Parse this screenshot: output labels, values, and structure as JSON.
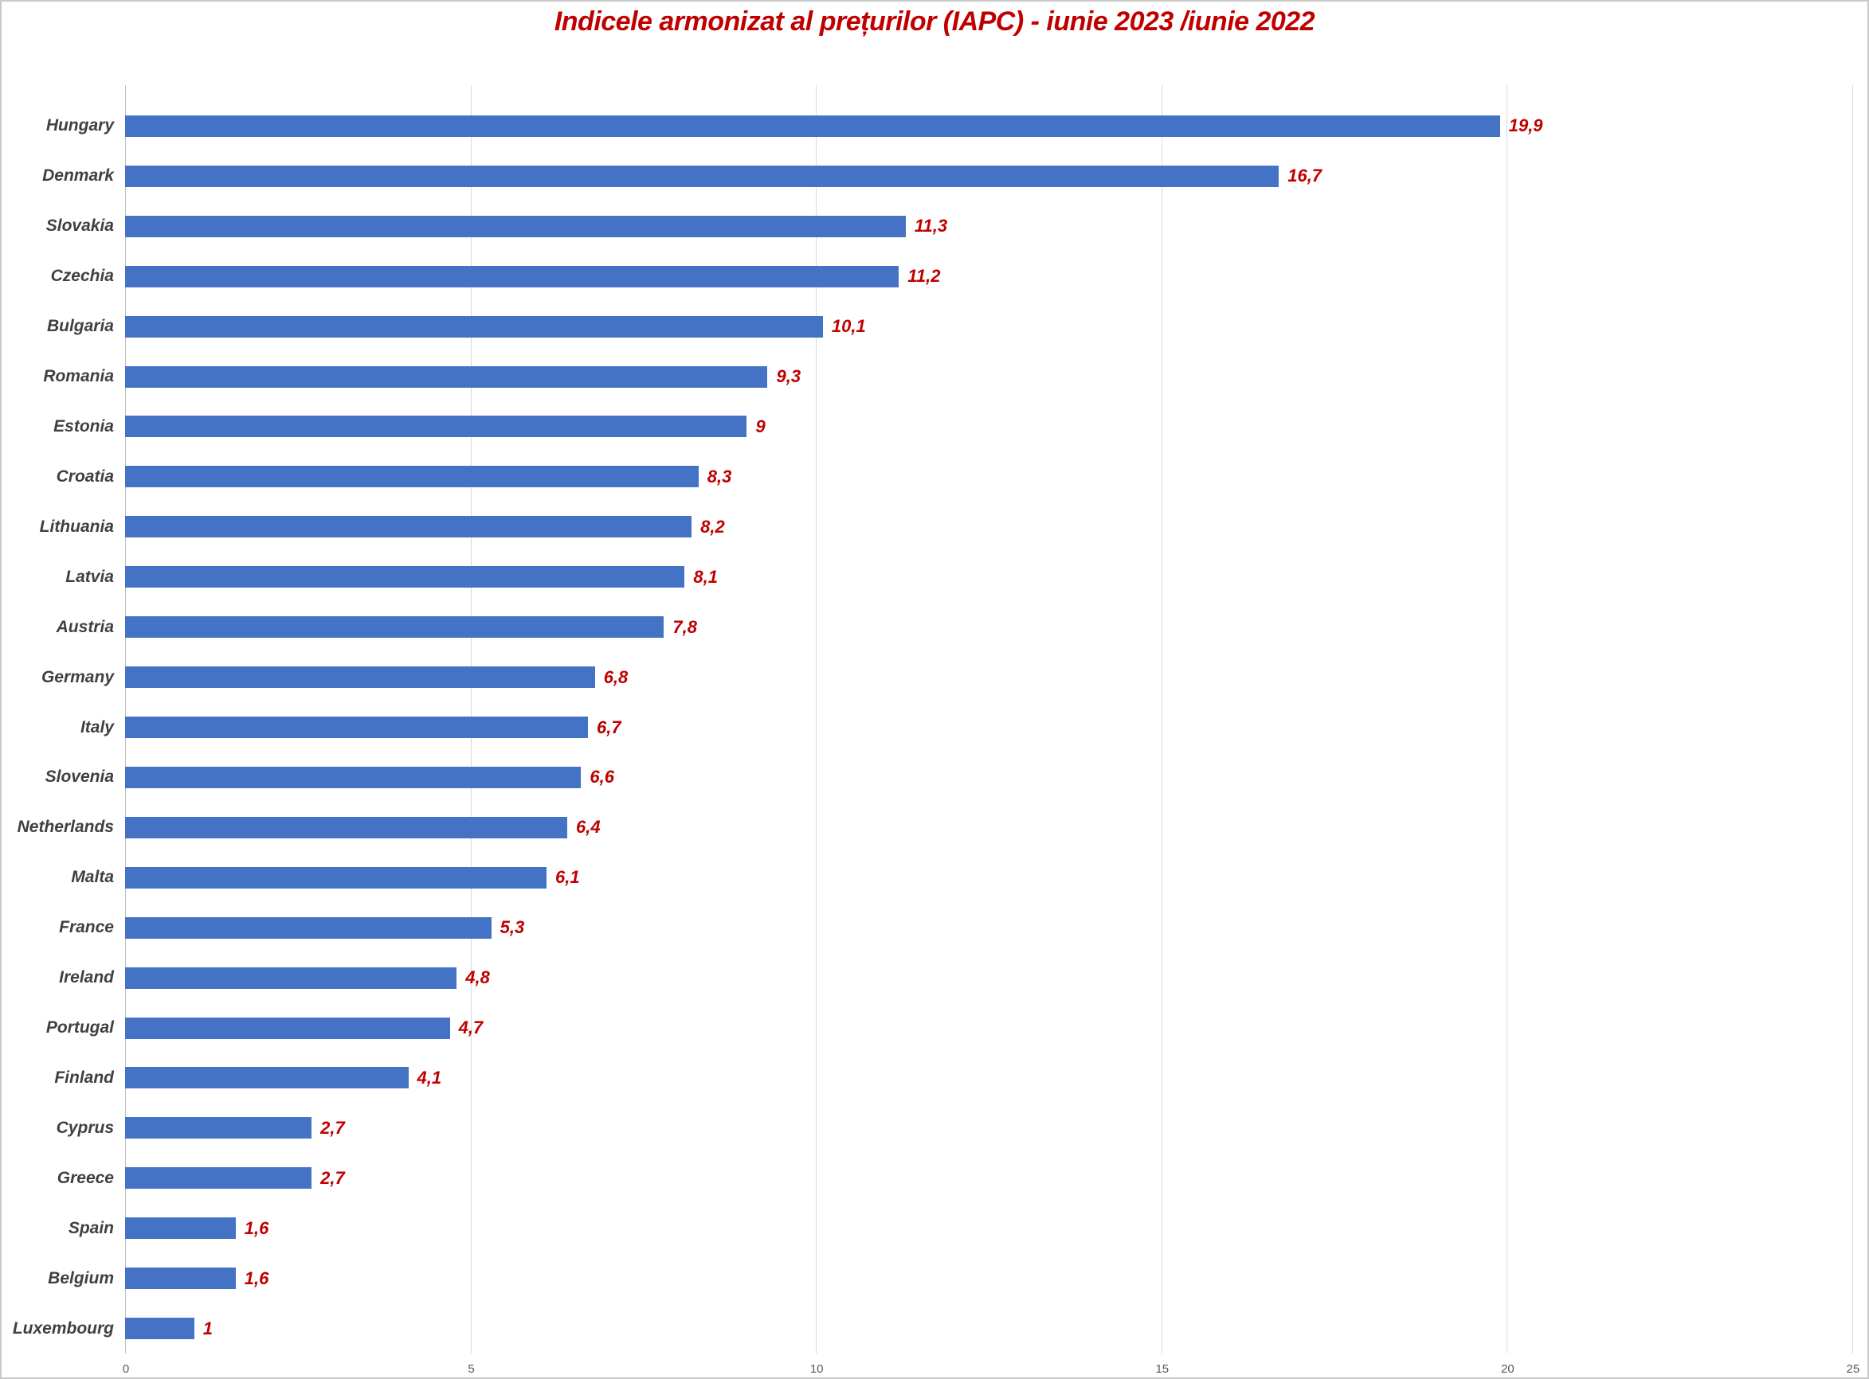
{
  "chart_data": {
    "type": "bar",
    "orientation": "horizontal",
    "title": "Indicele armonizat al prețurilor (IAPC) - iunie 2023 /iunie 2022",
    "categories": [
      "Hungary",
      "Denmark",
      "Slovakia",
      "Czechia",
      "Bulgaria",
      "Romania",
      "Estonia",
      "Croatia",
      "Lithuania",
      "Latvia",
      "Austria",
      "Germany",
      "Italy",
      "Slovenia",
      "Netherlands",
      "Malta",
      "France",
      "Ireland",
      "Portugal",
      "Finland",
      "Cyprus",
      "Greece",
      "Spain",
      "Belgium",
      "Luxembourg"
    ],
    "values": [
      19.9,
      16.7,
      11.3,
      11.2,
      10.1,
      9.3,
      9,
      8.3,
      8.2,
      8.1,
      7.8,
      6.8,
      6.7,
      6.6,
      6.4,
      6.1,
      5.3,
      4.8,
      4.7,
      4.1,
      2.7,
      2.7,
      1.6,
      1.6,
      1
    ],
    "value_labels": [
      "19,9",
      "16,7",
      "11,3",
      "11,2",
      "10,1",
      "9,3",
      "9",
      "8,3",
      "8,2",
      "8,1",
      "7,8",
      "6,8",
      "6,7",
      "6,6",
      "6,4",
      "6,1",
      "5,3",
      "4,8",
      "4,7",
      "4,1",
      "2,7",
      "2,7",
      "1,6",
      "1,6",
      "1"
    ],
    "xlabel": "",
    "ylabel": "",
    "xlim": [
      0,
      25
    ],
    "ticks": [
      0,
      5,
      10,
      15,
      20,
      25
    ],
    "grid": "vertical-on",
    "legend": "none",
    "colors": {
      "bar": "#4472c4",
      "title": "#c00000",
      "value_label": "#c00000",
      "category_label": "#404040",
      "tick_label": "#595959",
      "gridline": "#d9d9d9",
      "border": "#c9c9c9"
    }
  }
}
